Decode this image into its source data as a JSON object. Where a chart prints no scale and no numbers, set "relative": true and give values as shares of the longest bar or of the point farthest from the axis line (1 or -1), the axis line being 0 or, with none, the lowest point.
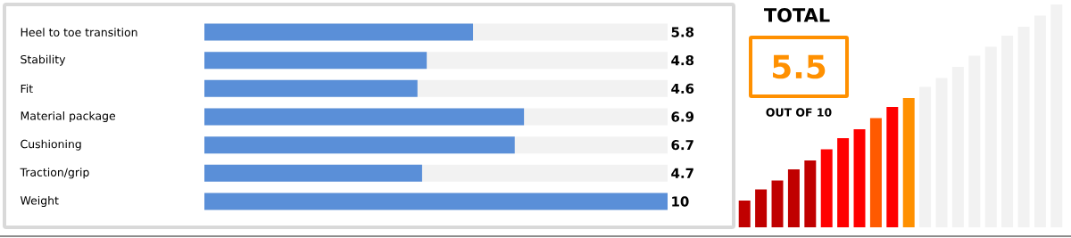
{
  "chart_data": [
    {
      "type": "bar",
      "orientation": "horizontal",
      "categories": [
        "Heel to toe transition",
        "Stability",
        "Fit",
        "Material package",
        "Cushioning",
        "Traction/grip",
        "Weight"
      ],
      "values": [
        5.8,
        4.8,
        4.6,
        6.9,
        6.7,
        4.7,
        10
      ],
      "color": "#5a8fd8",
      "xlim": [
        0,
        10
      ],
      "data_labels": true,
      "tick_labels": "y"
    },
    {
      "type": "bar",
      "relative": true,
      "title": "TOTAL",
      "annotations": [
        "5.5",
        "OUT OF 10"
      ],
      "categories": [
        null,
        null,
        null,
        null,
        null,
        null,
        null,
        null,
        null,
        null,
        null,
        null,
        null,
        null,
        null,
        null,
        null,
        null,
        null,
        null
      ],
      "values": [
        0.12,
        0.17,
        0.21,
        0.26,
        0.3,
        0.35,
        0.4,
        0.44,
        0.49,
        0.54,
        0.58,
        0.63,
        0.67,
        0.72,
        0.77,
        0.81,
        0.86,
        0.9,
        0.95,
        1
      ],
      "colors": [
        "#c00000",
        "#c00000",
        "#c00000",
        "#c00000",
        "#c00000",
        "#ff0000",
        "#ff0000",
        "#ff0000",
        "#ff5a00",
        "#ff0000",
        "#ff9000",
        "#f2f2f2",
        "#f2f2f2",
        "#f2f2f2",
        "#f2f2f2",
        "#f2f2f2",
        "#f2f2f2",
        "#f2f2f2",
        "#f2f2f2",
        "#f2f2f2"
      ]
    }
  ]
}
